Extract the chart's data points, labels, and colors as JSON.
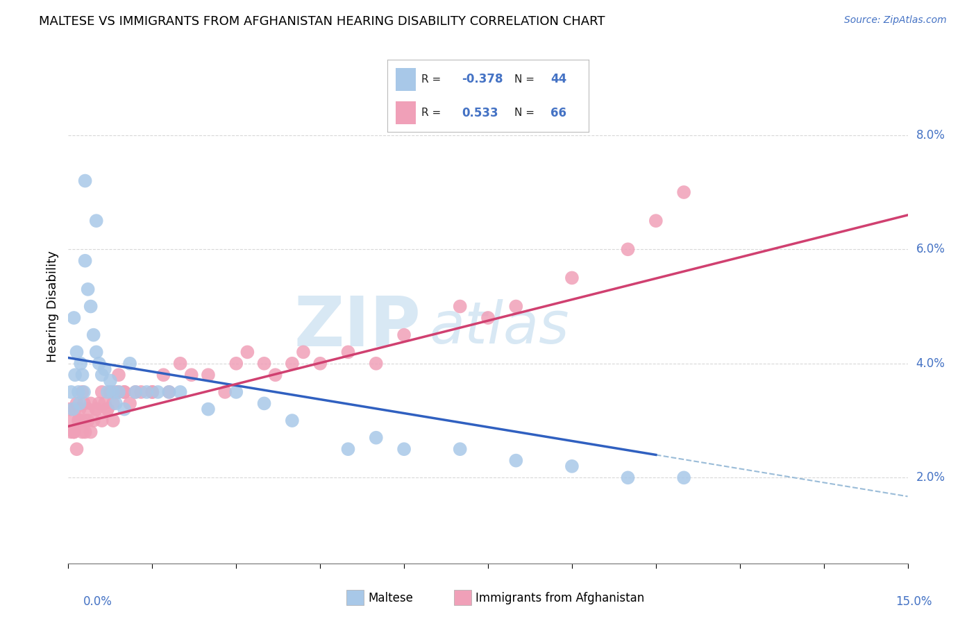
{
  "title": "MALTESE VS IMMIGRANTS FROM AFGHANISTAN HEARING DISABILITY CORRELATION CHART",
  "source": "Source: ZipAtlas.com",
  "ylabel": "Hearing Disability",
  "xlim": [
    0.0,
    15.0
  ],
  "ylim": [
    0.5,
    9.5
  ],
  "ytick_positions": [
    2.0,
    4.0,
    6.0,
    8.0
  ],
  "ytick_labels": [
    "2.0%",
    "4.0%",
    "6.0%",
    "8.0%"
  ],
  "maltese_color": "#a8c8e8",
  "afghanistan_color": "#f0a0b8",
  "maltese_line_color": "#3060c0",
  "afghanistan_line_color": "#d04070",
  "dashed_line_color": "#9abcd8",
  "watermark_color": "#d8e8f4",
  "background_color": "#ffffff",
  "grid_color": "#c8c8c8",
  "axis_label_color": "#4472c4",
  "legend_r1_val": "-0.378",
  "legend_n1_val": "44",
  "legend_r2_val": "0.533",
  "legend_n2_val": "66",
  "maltese_x": [
    0.05,
    0.08,
    0.1,
    0.12,
    0.15,
    0.18,
    0.2,
    0.22,
    0.25,
    0.28,
    0.3,
    0.35,
    0.4,
    0.45,
    0.5,
    0.55,
    0.6,
    0.65,
    0.7,
    0.75,
    0.8,
    0.85,
    0.9,
    1.0,
    1.1,
    1.2,
    1.4,
    1.6,
    1.8,
    2.0,
    2.5,
    3.0,
    3.5,
    4.0,
    5.0,
    5.5,
    6.0,
    7.0,
    8.0,
    9.0,
    10.0,
    11.0,
    0.3,
    0.5
  ],
  "maltese_y": [
    3.5,
    3.2,
    4.8,
    3.8,
    4.2,
    3.5,
    3.3,
    4.0,
    3.8,
    3.5,
    5.8,
    5.3,
    5.0,
    4.5,
    4.2,
    4.0,
    3.8,
    3.9,
    3.5,
    3.7,
    3.5,
    3.3,
    3.5,
    3.2,
    4.0,
    3.5,
    3.5,
    3.5,
    3.5,
    3.5,
    3.2,
    3.5,
    3.3,
    3.0,
    2.5,
    2.7,
    2.5,
    2.5,
    2.3,
    2.2,
    2.0,
    2.0,
    7.2,
    6.5
  ],
  "afghanistan_x": [
    0.02,
    0.05,
    0.08,
    0.1,
    0.12,
    0.15,
    0.18,
    0.2,
    0.22,
    0.25,
    0.28,
    0.3,
    0.35,
    0.4,
    0.45,
    0.5,
    0.55,
    0.6,
    0.65,
    0.7,
    0.75,
    0.8,
    0.85,
    0.9,
    1.0,
    1.1,
    1.2,
    1.3,
    1.5,
    1.7,
    1.8,
    2.0,
    2.2,
    2.5,
    2.8,
    3.0,
    3.2,
    3.5,
    3.7,
    4.0,
    4.2,
    4.5,
    5.0,
    5.5,
    6.0,
    7.0,
    7.5,
    8.0,
    9.0,
    10.0,
    10.5,
    11.0,
    0.1,
    0.15,
    0.2,
    0.25,
    0.3,
    0.35,
    0.4,
    0.5,
    0.6,
    0.7,
    0.8,
    0.9,
    1.0,
    1.5
  ],
  "afghanistan_y": [
    3.2,
    2.8,
    3.0,
    2.8,
    3.2,
    3.3,
    3.0,
    3.2,
    3.0,
    3.5,
    3.3,
    3.0,
    3.2,
    3.3,
    3.0,
    3.2,
    3.3,
    3.5,
    3.3,
    3.2,
    3.5,
    3.3,
    3.5,
    3.8,
    3.5,
    3.3,
    3.5,
    3.5,
    3.5,
    3.8,
    3.5,
    4.0,
    3.8,
    3.8,
    3.5,
    4.0,
    4.2,
    4.0,
    3.8,
    4.0,
    4.2,
    4.0,
    4.2,
    4.0,
    4.5,
    5.0,
    4.8,
    5.0,
    5.5,
    6.0,
    6.5,
    7.0,
    2.8,
    2.5,
    3.0,
    2.8,
    2.8,
    3.0,
    2.8,
    3.2,
    3.0,
    3.2,
    3.0,
    3.5,
    3.5,
    3.5
  ],
  "maltese_line_x0": 0.0,
  "maltese_line_y0": 4.1,
  "maltese_line_x1": 10.5,
  "maltese_line_y1": 2.4,
  "maltese_dash_x0": 10.5,
  "maltese_dash_x1": 15.0,
  "afghanistan_line_x0": 0.0,
  "afghanistan_line_y0": 2.9,
  "afghanistan_line_x1": 15.0,
  "afghanistan_line_y1": 6.6
}
